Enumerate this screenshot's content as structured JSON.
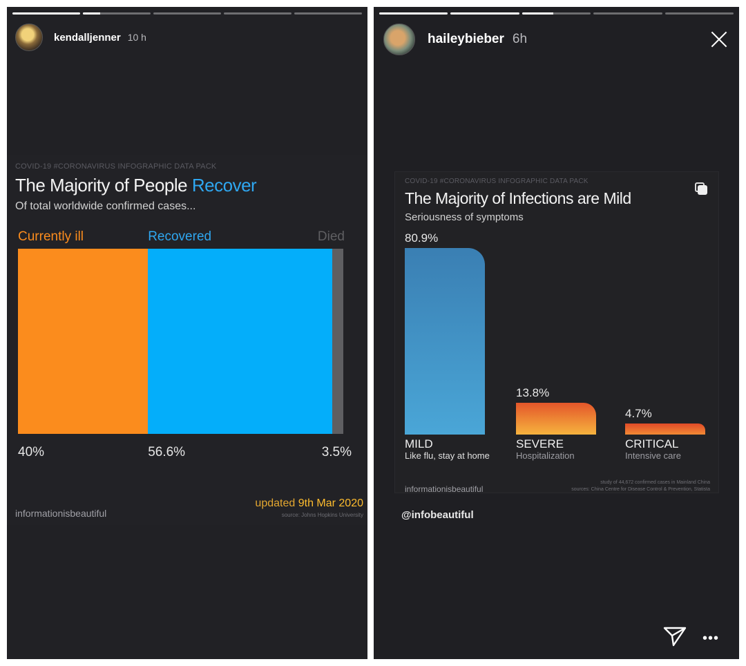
{
  "colors": {
    "ill": "#fb8c1d",
    "recovered": "#04aefa",
    "died": "#5f5f62",
    "recover_word": "#2fa7f0",
    "updated": "#ffbd2e"
  },
  "left_story": {
    "username": "kendalljenner",
    "time": "10 h",
    "progress": [
      1.0,
      0.25,
      0,
      0,
      0
    ],
    "infographic": {
      "kicker": "COVID-19 #CORONAVIRUS INFOGRAPHIC DATA PACK",
      "title_prefix": "The Majority of People",
      "title_highlight": "Recover",
      "subtitle": "Of total worldwide confirmed cases...",
      "brand": "informationisbeautiful",
      "updated_prefix": "updated",
      "updated_date": "9th Mar 2020",
      "source": "source: Johns Hopkins University"
    }
  },
  "right_story": {
    "username": "haileybieber",
    "time": "6h",
    "progress": [
      1.0,
      1.0,
      0.45,
      0,
      0
    ],
    "close_icon": "close-icon",
    "infographic": {
      "kicker": "COVID-19 #CORONAVIRUS INFOGRAPHIC DATA PACK",
      "title": "The Majority of Infections are Mild",
      "subtitle": "Seriousness of symptoms",
      "brand": "informationisbeautiful",
      "note_line1": "study of 44,672 confirmed cases in Mainland China",
      "note_line2": "sources: China Centre for Disease Control & Prevention, Statista"
    },
    "mention": "@infobeautiful",
    "actions": [
      "send-icon",
      "more-icon"
    ]
  },
  "chart_data": [
    {
      "type": "bar",
      "stacked": true,
      "title": "The Majority of People Recover",
      "subtitle": "Of total worldwide confirmed cases...",
      "categories": [
        "Currently ill",
        "Recovered",
        "Died"
      ],
      "values": [
        40,
        56.6,
        3.5
      ],
      "labels": [
        "40%",
        "56.6%",
        "3.5%"
      ]
    },
    {
      "type": "bar",
      "title": "The Majority of Infections are Mild",
      "subtitle": "Seriousness of symptoms",
      "categories": [
        "MILD",
        "SEVERE",
        "CRITICAL"
      ],
      "descriptions": [
        "Like flu, stay at home",
        "Hospitalization",
        "Intensive care"
      ],
      "values": [
        80.9,
        13.8,
        4.7
      ],
      "labels": [
        "80.9%",
        "13.8%",
        "4.7%"
      ]
    }
  ]
}
